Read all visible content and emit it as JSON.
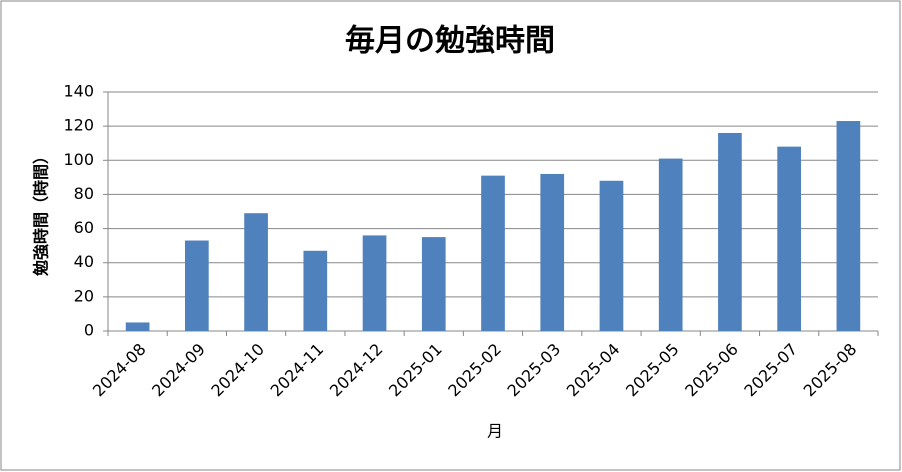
{
  "chart_data": {
    "type": "bar",
    "title": "毎月の勉強時間",
    "x_label": "月",
    "y_label": "勉強時間（時間）",
    "categories": [
      "2024-08",
      "2024-09",
      "2024-10",
      "2024-11",
      "2024-12",
      "2025-01",
      "2025-02",
      "2025-03",
      "2025-04",
      "2025-05",
      "2025-06",
      "2025-07",
      "2025-08"
    ],
    "values": [
      5,
      53,
      69,
      47,
      56,
      55,
      91,
      92,
      88,
      101,
      116,
      108,
      123
    ],
    "color": "#4f81bd",
    "ylim": [
      0,
      140
    ],
    "yticks": [
      0,
      20,
      40,
      60,
      80,
      100,
      120,
      140
    ],
    "grid": true
  }
}
